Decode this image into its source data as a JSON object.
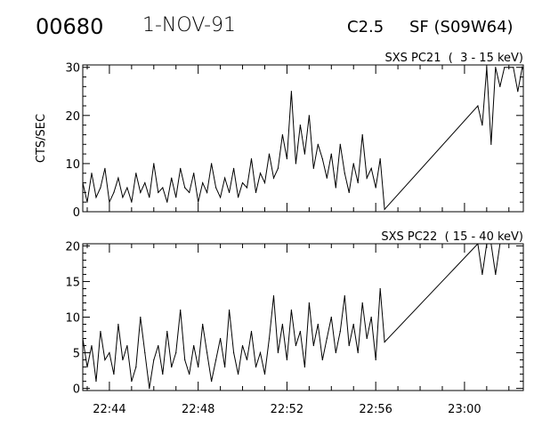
{
  "header": {
    "event_id": "00680",
    "date": "1-NOV-91",
    "flare_class": "C2.5",
    "location": "SF (S09W64)"
  },
  "chart_data": [
    {
      "type": "line",
      "title": "SXS PC21  (  3 - 15 keV)",
      "xlabel": "",
      "ylabel": "CTS/SEC",
      "xlim": [
        42.8,
        62.65
      ],
      "x_units": "minutes after 22:00",
      "ylim": [
        0,
        30.5
      ],
      "yticks": [
        0,
        10,
        20,
        30
      ],
      "xticks": [
        44,
        48,
        52,
        56,
        60
      ],
      "xtick_labels": [],
      "segments": [
        {
          "x_start": 42.8,
          "x_step": 0.2,
          "values": [
            6,
            2,
            8,
            3,
            5,
            9,
            2,
            4,
            7,
            3,
            5,
            2,
            8,
            4,
            6,
            3,
            10,
            4,
            5,
            2,
            7,
            3,
            9,
            5,
            4,
            8,
            2,
            6,
            4,
            10,
            5,
            3,
            7,
            4,
            9,
            3,
            6,
            5,
            11,
            4,
            8,
            6,
            12,
            7,
            9,
            16,
            11,
            25,
            10,
            18,
            12,
            20,
            9,
            14,
            11,
            7,
            12,
            5,
            14,
            8,
            4,
            10,
            6,
            16,
            7,
            9,
            5,
            11,
            0.5
          ]
        },
        {
          "x_start": 60.6,
          "x_step": 0.2,
          "values": [
            22,
            18,
            30,
            14,
            30,
            26,
            30,
            30,
            30,
            25,
            30,
            28
          ]
        }
      ]
    },
    {
      "type": "line",
      "title": "SXS PC22  ( 15 - 40 keV)",
      "xlabel": "",
      "ylabel": "",
      "xlim": [
        42.8,
        62.65
      ],
      "x_units": "minutes after 22:00",
      "ylim": [
        -0.3,
        20.3
      ],
      "yticks": [
        0,
        5,
        10,
        15,
        20
      ],
      "xticks": [
        44,
        48,
        52,
        56,
        60
      ],
      "xtick_labels": [
        "22:44",
        "22:48",
        "22:52",
        "22:56",
        "23:00"
      ],
      "segments": [
        {
          "x_start": 42.8,
          "x_step": 0.2,
          "values": [
            7,
            3,
            6,
            1,
            8,
            4,
            5,
            2,
            9,
            4,
            6,
            1,
            3,
            10,
            5,
            0,
            4,
            6,
            2,
            8,
            3,
            5,
            11,
            4,
            2,
            6,
            3,
            9,
            5,
            1,
            4,
            7,
            3,
            11,
            5,
            2,
            6,
            4,
            8,
            3,
            5,
            2,
            7,
            13,
            5,
            9,
            4,
            11,
            6,
            8,
            3,
            12,
            6,
            9,
            4,
            7,
            10,
            5,
            8,
            13,
            6,
            9,
            5,
            12,
            7,
            10,
            4,
            14,
            6.5
          ]
        },
        {
          "x_start": 60.6,
          "x_step": 0.2,
          "values": [
            21,
            16,
            22,
            21,
            16,
            21,
            22
          ]
        }
      ]
    }
  ]
}
